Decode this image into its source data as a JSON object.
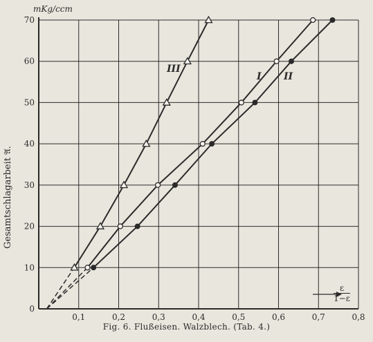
{
  "chart_data": {
    "type": "line",
    "ylabel": "Gesamtschlagarbeit 𝔄.",
    "yunit": "mKg/ccm",
    "xlabel_num": "ε",
    "xlabel_den": "1−ε",
    "xlim": [
      0,
      0.8
    ],
    "ylim": [
      0,
      70
    ],
    "xticks": [
      "0,1",
      "0,2",
      "0,3",
      "0,4",
      "0,5",
      "0,6",
      "0,7",
      "0,8"
    ],
    "yticks": [
      "0",
      "10",
      "20",
      "30",
      "40",
      "50",
      "60",
      "70"
    ],
    "grid": true,
    "caption": "Fig. 6.   Flußeisen.   Walzblech.   (Tab. 4.)",
    "series": [
      {
        "name": "III",
        "marker": "triangle",
        "x": [
          0.089,
          0.154,
          0.213,
          0.269,
          0.32,
          0.372,
          0.425
        ],
        "y": [
          10,
          20,
          30,
          40,
          50,
          60,
          70
        ]
      },
      {
        "name": "I",
        "marker": "circle-open",
        "x": [
          0.122,
          0.204,
          0.298,
          0.41,
          0.507,
          0.595,
          0.686
        ],
        "y": [
          10,
          20,
          30,
          40,
          50,
          60,
          70
        ]
      },
      {
        "name": "II",
        "marker": "circle-filled",
        "x": [
          0.137,
          0.247,
          0.341,
          0.433,
          0.541,
          0.632,
          0.735
        ],
        "y": [
          10,
          20,
          30,
          40,
          50,
          60,
          70
        ]
      }
    ],
    "extrapolation": {
      "style": "dashed",
      "origin": [
        0.02,
        0
      ]
    }
  }
}
